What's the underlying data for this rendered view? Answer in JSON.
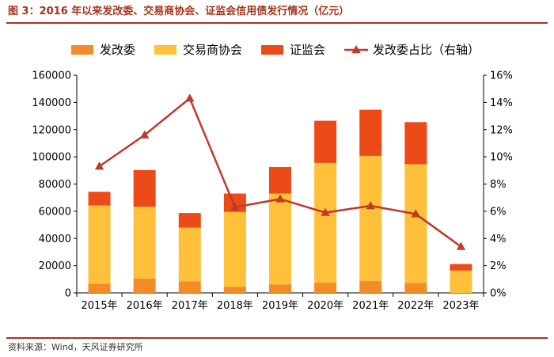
{
  "figure": {
    "title": "图 3：2016 年以来发改委、交易商协会、证监会信用债发行情况（亿元）",
    "source": "资料来源：Wind，天风证券研究所"
  },
  "chart_data": {
    "type": "bar",
    "stacked": true,
    "categories": [
      "2015年",
      "2016年",
      "2017年",
      "2018年",
      "2019年",
      "2020年",
      "2021年",
      "2022年",
      "2023年"
    ],
    "series": [
      {
        "name": "发改委",
        "kind": "bar",
        "axis": "left",
        "color": "#F28C28",
        "values": [
          6800,
          10500,
          8500,
          4500,
          6300,
          7500,
          8700,
          7400,
          0
        ]
      },
      {
        "name": "交易商协会",
        "kind": "bar",
        "axis": "left",
        "color": "#FFC03A",
        "values": [
          57500,
          52800,
          39500,
          55000,
          66700,
          88000,
          92000,
          87200,
          16400
        ]
      },
      {
        "name": "证监会",
        "kind": "bar",
        "axis": "left",
        "color": "#EC4A17",
        "values": [
          10000,
          27000,
          10700,
          13500,
          19500,
          31000,
          33900,
          30900,
          4800
        ]
      },
      {
        "name": "发改委占比（右轴）",
        "kind": "line",
        "axis": "right",
        "color": "#C0392B",
        "marker": "triangle",
        "values": [
          9.3,
          11.6,
          14.3,
          6.3,
          6.9,
          5.9,
          6.4,
          5.8,
          3.4
        ]
      }
    ],
    "y_left": {
      "min": 0,
      "max": 160000,
      "step": 20000,
      "ticks": [
        "0",
        "20000",
        "40000",
        "60000",
        "80000",
        "100000",
        "120000",
        "140000",
        "160000"
      ]
    },
    "y_right": {
      "min": 0,
      "max": 16,
      "step": 2,
      "ticks": [
        "0%",
        "2%",
        "4%",
        "6%",
        "8%",
        "10%",
        "12%",
        "14%",
        "16%"
      ]
    },
    "legend_position": "top",
    "grid": false
  }
}
